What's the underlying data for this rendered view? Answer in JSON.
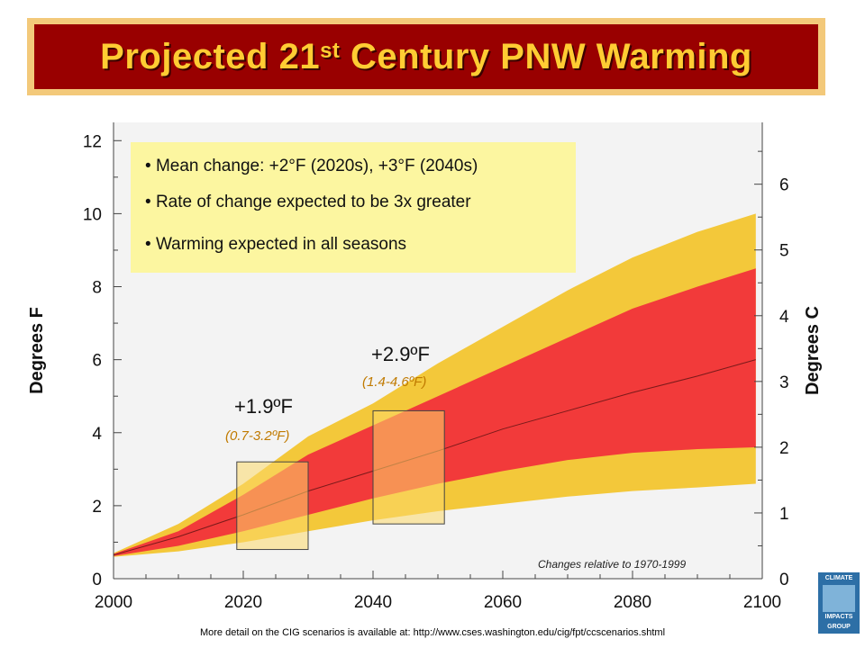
{
  "title": {
    "main": "Projected 21",
    "sup": "st",
    "rest": " Century PNW Warming"
  },
  "colors": {
    "title_bg": "#990000",
    "title_text": "#ffcc33",
    "title_border": "#f3c97a",
    "outer_band": "#f3c83a",
    "inner_band": "#f23a3a",
    "mean_line": "#7a1a1a",
    "callout_box": "#fcf6a0",
    "callout_box_fill_2020s": "#fcd96a",
    "range_text": "#c07a00"
  },
  "callout": {
    "bullets": [
      "Mean change: +2°F (2020s), +3°F (2040s)",
      "Rate of change expected to be 3x greater",
      "Warming expected in all seasons"
    ]
  },
  "annotations": {
    "a2020_value": "+1.9ºF",
    "a2020_range": "(0.7-3.2ºF)",
    "a2040_value": "+2.9ºF",
    "a2040_range": "(1.4-4.6ºF)",
    "relative_note": "Changes relative to 1970-1999"
  },
  "footer": "More detail on the CIG scenarios is available at: http://www.cses.washington.edu/cig/fpt/ccscenarios.shtml",
  "logo": {
    "line1": "CLIMATE",
    "line2": "IMPACTS",
    "line3": "GROUP"
  },
  "chart_data": {
    "type": "area",
    "title": "Projected 21st Century PNW Warming",
    "xlabel": "",
    "ylabel": "Degrees F",
    "ylabel_right": "Degrees C",
    "xlim": [
      2000,
      2100
    ],
    "ylim": [
      0,
      12.5
    ],
    "ylim_right": [
      0,
      6.94
    ],
    "xticks": [
      2000,
      2020,
      2040,
      2060,
      2080,
      2100
    ],
    "yticks": [
      0,
      2,
      4,
      6,
      8,
      10,
      12
    ],
    "yticks_right": [
      0,
      1,
      2,
      3,
      4,
      5,
      6
    ],
    "grid": false,
    "x": [
      2000,
      2010,
      2020,
      2030,
      2040,
      2050,
      2060,
      2070,
      2080,
      2090,
      2099
    ],
    "series": [
      {
        "role": "outer-band",
        "upper": [
          0.7,
          1.5,
          2.6,
          3.9,
          4.8,
          5.9,
          6.9,
          7.9,
          8.8,
          9.5,
          10.0
        ],
        "lower": [
          0.6,
          0.75,
          1.0,
          1.3,
          1.6,
          1.85,
          2.05,
          2.25,
          2.4,
          2.5,
          2.6
        ]
      },
      {
        "role": "inner-band",
        "upper": [
          0.68,
          1.3,
          2.3,
          3.4,
          4.2,
          5.0,
          5.8,
          6.6,
          7.4,
          8.0,
          8.5
        ],
        "lower": [
          0.62,
          0.9,
          1.3,
          1.75,
          2.2,
          2.6,
          2.95,
          3.25,
          3.45,
          3.55,
          3.6
        ]
      },
      {
        "role": "mean",
        "values": [
          0.65,
          1.15,
          1.75,
          2.4,
          2.95,
          3.5,
          4.1,
          4.6,
          5.1,
          5.55,
          6.0
        ]
      }
    ],
    "highlight_boxes": [
      {
        "x0": 2019,
        "x1": 2030,
        "y0": 0.8,
        "y1": 3.2,
        "value": "+1.9ºF",
        "range": "(0.7-3.2ºF)"
      },
      {
        "x0": 2040,
        "x1": 2051,
        "y0": 1.5,
        "y1": 4.6,
        "value": "+2.9ºF",
        "range": "(1.4-4.6ºF)"
      }
    ]
  }
}
